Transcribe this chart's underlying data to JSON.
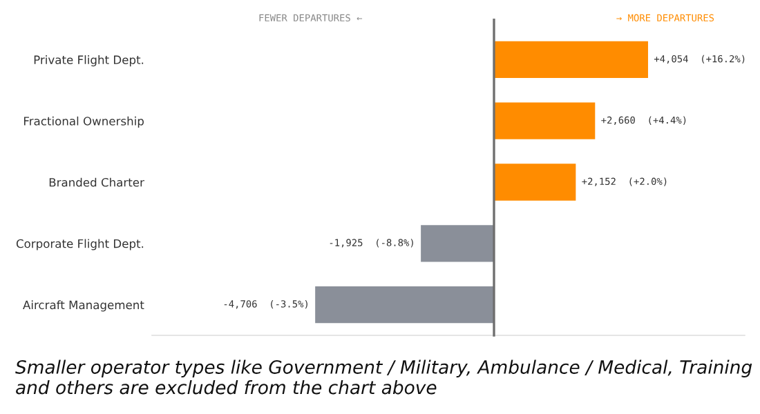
{
  "chart_data": {
    "type": "bar",
    "orientation": "horizontal",
    "categories": [
      "Private Flight Dept.",
      "Fractional Ownership",
      "Branded Charter",
      "Corporate Flight Dept.",
      "Aircraft Management"
    ],
    "values": [
      4054,
      2660,
      2152,
      -1925,
      -4706
    ],
    "colors": [
      "#ff8c00",
      "#ff8c00",
      "#ff8c00",
      "#8a8f99",
      "#8a8f99"
    ],
    "value_labels": [
      "+4,054  (+16.2%)",
      "+2,660  (+4.4%)",
      "+2,152  (+2.0%)",
      "-1,925  (-8.8%)",
      "-4,706  (-3.5%)"
    ],
    "xlim": [
      -9000,
      6600
    ],
    "ref_lines": [
      {
        "axis": "x",
        "value": 0,
        "color": "#6e6e6e"
      }
    ],
    "annotations": [
      "FEWER DEPARTURES ←",
      "→ MORE DEPARTURES",
      "Smaller operator types like Government / Military, Ambulance / Medical, Training and others are excluded from the chart above"
    ],
    "grid": false,
    "legend": false
  }
}
